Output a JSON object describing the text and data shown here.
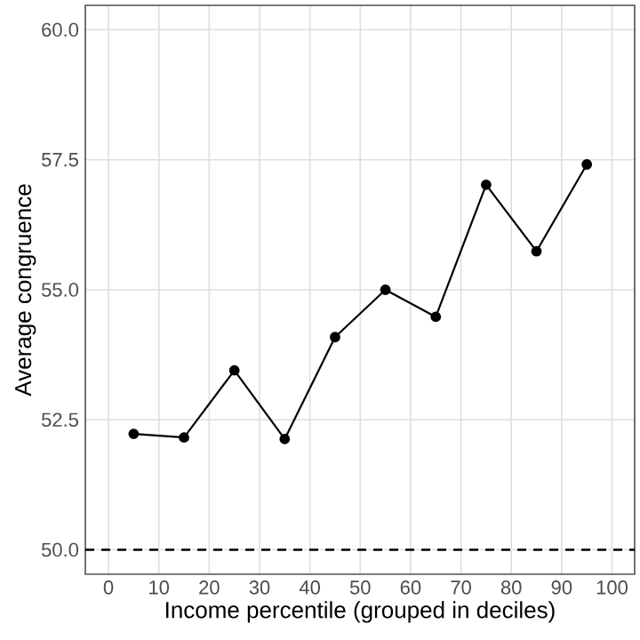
{
  "chart_data": {
    "type": "line",
    "xlabel": "Income percentile (grouped in deciles)",
    "ylabel": "Average congruence",
    "x": [
      5,
      15,
      25,
      35,
      45,
      55,
      65,
      75,
      85,
      95
    ],
    "series": [
      {
        "color": "#000000",
        "values": [
          52.23,
          52.16,
          53.45,
          52.13,
          54.09,
          55.0,
          54.48,
          57.02,
          55.74,
          57.41
        ]
      }
    ],
    "xlim": [
      -4.6,
      104.5
    ],
    "xticks": [
      0,
      10,
      20,
      30,
      40,
      50,
      60,
      70,
      80,
      90,
      100
    ],
    "ylim": [
      49.53,
      60.47
    ],
    "yticks": [
      {
        "value": 50,
        "label": "50.0"
      },
      {
        "value": 52.5,
        "label": "52.5"
      },
      {
        "value": 55,
        "label": "55.0"
      },
      {
        "value": 57.5,
        "label": "57.5"
      },
      {
        "value": 60,
        "label": "60.0"
      }
    ],
    "grid": true,
    "marker": "circle",
    "line_style": "solid",
    "ref_lines": [
      {
        "axis": "y",
        "value": 50,
        "color": "#000000",
        "line_style": "dashed"
      }
    ]
  }
}
